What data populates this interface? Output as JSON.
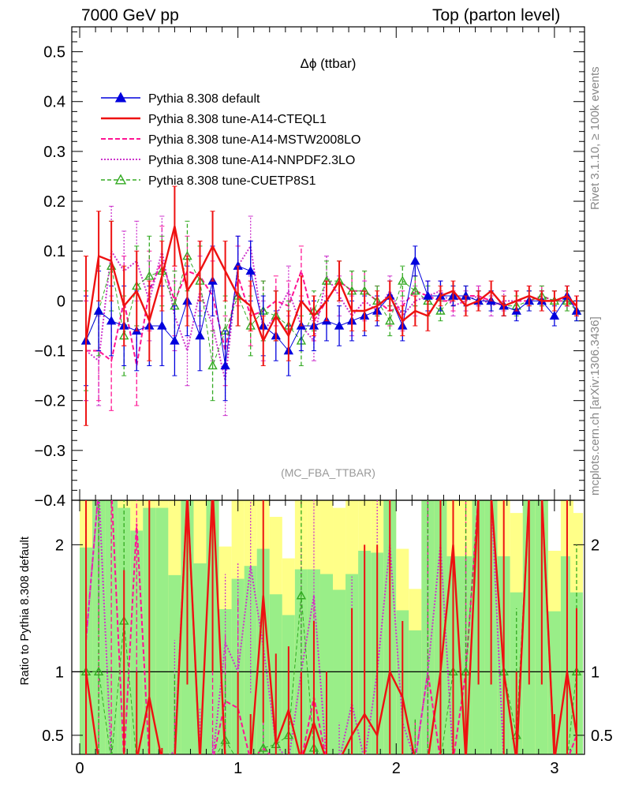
{
  "header": {
    "left": "7000 GeV pp",
    "right": "Top (parton level)"
  },
  "side_labels": {
    "rivet": "Rivet 3.1.10, ≥ 100k events",
    "mcplots": "mcplots.cern.ch [arXiv:1306.3436]"
  },
  "chart_data": {
    "type": "line",
    "title": "Δϕ (ttbar)",
    "watermark": "(MC_FBA_TTBAR)",
    "xlabel": "",
    "ylabel": "",
    "xlim": [
      -0.05,
      3.19
    ],
    "ylim": [
      -0.4,
      0.55
    ],
    "x_ticks": [
      "0",
      "1",
      "2",
      "3"
    ],
    "y_ticks": [
      "−0.4",
      "−0.3",
      "−0.2",
      "−0.1",
      "0",
      "0.1",
      "0.2",
      "0.3",
      "0.4",
      "0.5"
    ],
    "legend_position": "top-left",
    "x": [
      0.04,
      0.12,
      0.2,
      0.28,
      0.36,
      0.44,
      0.52,
      0.6,
      0.68,
      0.76,
      0.84,
      0.92,
      1.0,
      1.08,
      1.16,
      1.24,
      1.32,
      1.4,
      1.48,
      1.56,
      1.64,
      1.72,
      1.8,
      1.88,
      1.96,
      2.04,
      2.12,
      2.2,
      2.28,
      2.36,
      2.44,
      2.52,
      2.6,
      2.68,
      2.76,
      2.84,
      2.92,
      3.0,
      3.08,
      3.14
    ],
    "series": [
      {
        "name": "Pythia 8.308 default",
        "color": "#0000dd",
        "style": "solid-triangle",
        "values": [
          -0.08,
          -0.02,
          -0.04,
          -0.05,
          -0.06,
          -0.05,
          -0.05,
          -0.08,
          0.0,
          -0.07,
          0.04,
          -0.13,
          0.07,
          0.06,
          -0.05,
          -0.07,
          -0.1,
          -0.05,
          -0.05,
          -0.04,
          -0.05,
          -0.04,
          -0.03,
          -0.02,
          0.01,
          -0.05,
          0.08,
          0.01,
          0.01,
          0.01,
          0.01,
          0.0,
          0.0,
          -0.01,
          -0.02,
          0.0,
          0.0,
          -0.03,
          0.01,
          -0.02
        ],
        "errors": [
          0.09,
          0.08,
          0.07,
          0.08,
          0.08,
          0.08,
          0.08,
          0.07,
          0.07,
          0.07,
          0.07,
          0.07,
          0.06,
          0.06,
          0.06,
          0.05,
          0.05,
          0.05,
          0.05,
          0.04,
          0.04,
          0.04,
          0.04,
          0.03,
          0.03,
          0.03,
          0.03,
          0.03,
          0.03,
          0.02,
          0.02,
          0.02,
          0.02,
          0.02,
          0.02,
          0.02,
          0.02,
          0.02,
          0.02,
          0.02
        ]
      },
      {
        "name": "Pythia 8.308 tune-A14-CTEQL1",
        "color": "#ee1111",
        "style": "solid",
        "values": [
          -0.08,
          0.09,
          0.08,
          -0.01,
          0.02,
          -0.04,
          0.05,
          0.15,
          0.02,
          0.06,
          0.11,
          0.06,
          0.01,
          -0.01,
          -0.08,
          -0.03,
          -0.07,
          0.0,
          -0.03,
          0.0,
          0.04,
          -0.02,
          -0.02,
          -0.01,
          0.01,
          -0.04,
          -0.02,
          -0.03,
          0.01,
          0.02,
          -0.01,
          0.0,
          0.02,
          -0.01,
          0.0,
          0.01,
          0.0,
          0.0,
          0.01,
          -0.01
        ],
        "errors": [
          0.17,
          0.09,
          0.08,
          0.08,
          0.08,
          0.08,
          0.07,
          0.08,
          0.07,
          0.06,
          0.07,
          0.06,
          0.06,
          0.05,
          0.05,
          0.05,
          0.05,
          0.05,
          0.04,
          0.04,
          0.04,
          0.04,
          0.04,
          0.03,
          0.03,
          0.03,
          0.03,
          0.03,
          0.02,
          0.02,
          0.02,
          0.02,
          0.02,
          0.02,
          0.02,
          0.02,
          0.02,
          0.02,
          0.02,
          0.02
        ]
      },
      {
        "name": "Pythia 8.308 tune-A14-MSTW2008LO",
        "color": "#ff1493",
        "style": "dashed",
        "values": [
          -0.1,
          -0.1,
          -0.12,
          0.0,
          -0.13,
          0.02,
          0.08,
          0.0,
          0.06,
          0.05,
          0.01,
          -0.1,
          0.05,
          -0.03,
          -0.02,
          0.0,
          -0.01,
          0.06,
          -0.04,
          0.0,
          0.04,
          0.02,
          0.02,
          0.0,
          -0.02,
          -0.01,
          0.02,
          0.01,
          0.0,
          0.0,
          0.01,
          0.01,
          0.0,
          -0.01,
          0.0,
          0.0,
          0.01,
          0.0,
          0.0,
          -0.01
        ],
        "errors": [
          0.1,
          0.1,
          0.1,
          0.09,
          0.08,
          0.08,
          0.07,
          0.07,
          0.07,
          0.07,
          0.07,
          0.07,
          0.06,
          0.06,
          0.06,
          0.05,
          0.05,
          0.05,
          0.04,
          0.04,
          0.04,
          0.04,
          0.04,
          0.03,
          0.03,
          0.03,
          0.03,
          0.03,
          0.02,
          0.02,
          0.02,
          0.02,
          0.02,
          0.02,
          0.02,
          0.02,
          0.02,
          0.02,
          0.02,
          0.02
        ]
      },
      {
        "name": "Pythia 8.308 tune-A14-NNPDF2.3LO",
        "color": "#cc33cc",
        "style": "dotted",
        "values": [
          -0.1,
          -0.12,
          0.1,
          0.06,
          0.08,
          0.0,
          0.1,
          -0.03,
          -0.1,
          0.02,
          -0.05,
          -0.16,
          0.07,
          0.11,
          -0.06,
          -0.03,
          0.02,
          -0.05,
          -0.08,
          0.05,
          0.01,
          -0.03,
          0.0,
          -0.02,
          0.02,
          -0.03,
          0.0,
          0.01,
          0.02,
          -0.01,
          0.0,
          0.01,
          -0.01,
          0.0,
          0.0,
          0.01,
          0.0,
          0.0,
          0.01,
          -0.01
        ],
        "errors": [
          0.1,
          0.09,
          0.09,
          0.08,
          0.08,
          0.08,
          0.07,
          0.07,
          0.07,
          0.07,
          0.07,
          0.07,
          0.06,
          0.06,
          0.06,
          0.05,
          0.05,
          0.05,
          0.04,
          0.04,
          0.04,
          0.04,
          0.04,
          0.03,
          0.03,
          0.03,
          0.03,
          0.03,
          0.02,
          0.02,
          0.02,
          0.02,
          0.02,
          0.02,
          0.02,
          0.02,
          0.02,
          0.02,
          0.02,
          0.02
        ]
      },
      {
        "name": "Pythia 8.308 tune-CUETP8S1",
        "color": "#33aa22",
        "style": "dashed-open-triangle",
        "values": [
          -0.08,
          -0.02,
          0.07,
          -0.07,
          0.03,
          0.05,
          0.06,
          -0.01,
          0.09,
          0.04,
          -0.13,
          -0.06,
          0.01,
          -0.05,
          -0.02,
          -0.03,
          -0.05,
          -0.08,
          -0.02,
          0.04,
          0.04,
          0.02,
          0.02,
          0.0,
          -0.04,
          0.04,
          0.02,
          0.0,
          -0.02,
          0.01,
          0.01,
          0.0,
          0.0,
          -0.01,
          -0.01,
          0.0,
          0.01,
          0.0,
          0.0,
          -0.02
        ],
        "errors": [
          0.1,
          0.09,
          0.09,
          0.08,
          0.08,
          0.08,
          0.07,
          0.07,
          0.07,
          0.07,
          0.07,
          0.07,
          0.06,
          0.06,
          0.06,
          0.05,
          0.05,
          0.05,
          0.04,
          0.04,
          0.04,
          0.04,
          0.04,
          0.03,
          0.03,
          0.03,
          0.03,
          0.03,
          0.02,
          0.02,
          0.02,
          0.02,
          0.02,
          0.02,
          0.02,
          0.02,
          0.02,
          0.02,
          0.02,
          0.02
        ]
      }
    ],
    "ratio_panel": {
      "ylabel": "Ratio to Pythia 8.308 default",
      "ylim": [
        0.35,
        2.35
      ],
      "y_ticks": [
        "0.5",
        "1",
        "2"
      ],
      "reference": 1
    }
  }
}
